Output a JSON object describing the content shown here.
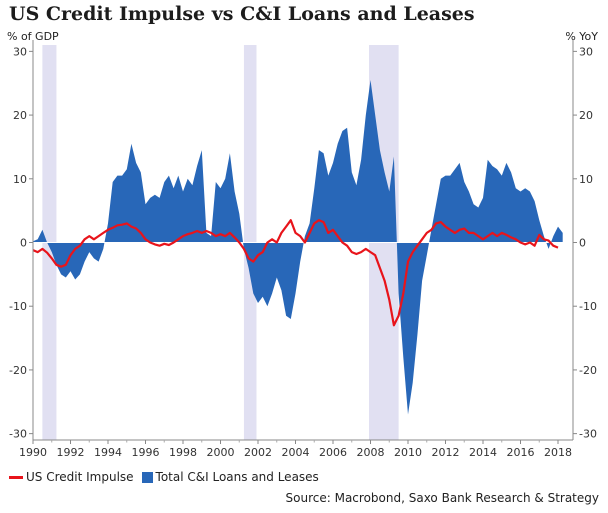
{
  "chart_data": {
    "type": "area",
    "title": "US Credit Impulse vs C&I Loans and Leases",
    "ylabel_left": "% of GDP",
    "ylabel_right": "% YoY",
    "xlim": [
      1990,
      2018.8
    ],
    "ylim": [
      -31,
      31
    ],
    "x_ticks": [
      1990,
      1992,
      1994,
      1996,
      1998,
      2000,
      2002,
      2004,
      2006,
      2008,
      2010,
      2012,
      2014,
      2016,
      2018
    ],
    "y_ticks": [
      -30,
      -20,
      -10,
      0,
      10,
      20,
      30
    ],
    "grid": false,
    "recession_bands": [
      [
        1990.5,
        1991.25
      ],
      [
        2001.25,
        2001.92
      ],
      [
        2007.92,
        2009.5
      ]
    ],
    "legend": {
      "placement": "bottom-left"
    },
    "series": [
      {
        "name": "Total C&I Loans and Leases",
        "style": "area",
        "color": "#2867b8",
        "points": [
          [
            1990.0,
            0.2
          ],
          [
            1990.25,
            0.5
          ],
          [
            1990.5,
            2.0
          ],
          [
            1990.75,
            0.0
          ],
          [
            1991.0,
            -1.5
          ],
          [
            1991.25,
            -3.5
          ],
          [
            1991.5,
            -5.0
          ],
          [
            1991.75,
            -5.5
          ],
          [
            1992.0,
            -4.5
          ],
          [
            1992.25,
            -5.8
          ],
          [
            1992.5,
            -5.0
          ],
          [
            1992.75,
            -3.0
          ],
          [
            1993.0,
            -1.5
          ],
          [
            1993.25,
            -2.5
          ],
          [
            1993.5,
            -3.0
          ],
          [
            1993.75,
            -1.0
          ],
          [
            1994.0,
            3.0
          ],
          [
            1994.25,
            9.5
          ],
          [
            1994.5,
            10.5
          ],
          [
            1994.75,
            10.5
          ],
          [
            1995.0,
            11.5
          ],
          [
            1995.25,
            15.5
          ],
          [
            1995.5,
            12.5
          ],
          [
            1995.75,
            11.0
          ],
          [
            1996.0,
            6.0
          ],
          [
            1996.25,
            7.0
          ],
          [
            1996.5,
            7.5
          ],
          [
            1996.75,
            7.0
          ],
          [
            1997.0,
            9.5
          ],
          [
            1997.25,
            10.5
          ],
          [
            1997.5,
            8.5
          ],
          [
            1997.75,
            10.5
          ],
          [
            1998.0,
            8.0
          ],
          [
            1998.25,
            10.0
          ],
          [
            1998.5,
            9.0
          ],
          [
            1998.75,
            12.0
          ],
          [
            1999.0,
            14.5
          ],
          [
            1999.25,
            1.5
          ],
          [
            1999.5,
            1.0
          ],
          [
            1999.75,
            9.5
          ],
          [
            2000.0,
            8.5
          ],
          [
            2000.25,
            10.0
          ],
          [
            2000.5,
            14.0
          ],
          [
            2000.75,
            8.0
          ],
          [
            2001.0,
            4.5
          ],
          [
            2001.25,
            -1.0
          ],
          [
            2001.5,
            -4.0
          ],
          [
            2001.75,
            -8.0
          ],
          [
            2002.0,
            -9.5
          ],
          [
            2002.25,
            -8.5
          ],
          [
            2002.5,
            -10.0
          ],
          [
            2002.75,
            -8.0
          ],
          [
            2003.0,
            -5.5
          ],
          [
            2003.25,
            -7.5
          ],
          [
            2003.5,
            -11.5
          ],
          [
            2003.75,
            -12.0
          ],
          [
            2004.0,
            -8.0
          ],
          [
            2004.25,
            -3.0
          ],
          [
            2004.5,
            1.0
          ],
          [
            2004.75,
            3.0
          ],
          [
            2005.0,
            8.5
          ],
          [
            2005.25,
            14.5
          ],
          [
            2005.5,
            14.0
          ],
          [
            2005.75,
            10.5
          ],
          [
            2006.0,
            12.5
          ],
          [
            2006.25,
            15.5
          ],
          [
            2006.5,
            17.5
          ],
          [
            2006.75,
            18.0
          ],
          [
            2007.0,
            11.0
          ],
          [
            2007.25,
            9.0
          ],
          [
            2007.5,
            13.0
          ],
          [
            2007.75,
            20.0
          ],
          [
            2008.0,
            25.5
          ],
          [
            2008.25,
            20.0
          ],
          [
            2008.5,
            14.5
          ],
          [
            2008.75,
            11.0
          ],
          [
            2009.0,
            8.0
          ],
          [
            2009.25,
            13.5
          ],
          [
            2009.5,
            -8.0
          ],
          [
            2009.75,
            -18.0
          ],
          [
            2010.0,
            -27.0
          ],
          [
            2010.25,
            -22.0
          ],
          [
            2010.5,
            -14.5
          ],
          [
            2010.75,
            -6.0
          ],
          [
            2011.0,
            -2.0
          ],
          [
            2011.25,
            2.0
          ],
          [
            2011.5,
            6.0
          ],
          [
            2011.75,
            10.0
          ],
          [
            2012.0,
            10.5
          ],
          [
            2012.25,
            10.5
          ],
          [
            2012.5,
            11.5
          ],
          [
            2012.75,
            12.5
          ],
          [
            2013.0,
            9.5
          ],
          [
            2013.25,
            8.0
          ],
          [
            2013.5,
            6.0
          ],
          [
            2013.75,
            5.5
          ],
          [
            2014.0,
            7.0
          ],
          [
            2014.25,
            13.0
          ],
          [
            2014.5,
            12.0
          ],
          [
            2014.75,
            11.5
          ],
          [
            2015.0,
            10.5
          ],
          [
            2015.25,
            12.5
          ],
          [
            2015.5,
            11.0
          ],
          [
            2015.75,
            8.5
          ],
          [
            2016.0,
            8.0
          ],
          [
            2016.25,
            8.5
          ],
          [
            2016.5,
            8.0
          ],
          [
            2016.75,
            6.5
          ],
          [
            2017.0,
            3.5
          ],
          [
            2017.25,
            1.0
          ],
          [
            2017.5,
            -1.0
          ],
          [
            2017.75,
            1.0
          ],
          [
            2018.0,
            2.5
          ],
          [
            2018.25,
            1.5
          ]
        ]
      },
      {
        "name": "US Credit Impulse",
        "style": "line",
        "color": "#e8141b",
        "points": [
          [
            1990.0,
            -1.2
          ],
          [
            1990.25,
            -1.5
          ],
          [
            1990.5,
            -1.0
          ],
          [
            1990.75,
            -1.6
          ],
          [
            1991.0,
            -2.5
          ],
          [
            1991.25,
            -3.5
          ],
          [
            1991.5,
            -3.8
          ],
          [
            1991.75,
            -3.5
          ],
          [
            1992.0,
            -2.0
          ],
          [
            1992.25,
            -1.0
          ],
          [
            1992.5,
            -0.5
          ],
          [
            1992.75,
            0.5
          ],
          [
            1993.0,
            1.0
          ],
          [
            1993.25,
            0.5
          ],
          [
            1993.5,
            1.0
          ],
          [
            1993.75,
            1.5
          ],
          [
            1994.0,
            2.0
          ],
          [
            1994.25,
            2.3
          ],
          [
            1994.5,
            2.7
          ],
          [
            1994.75,
            2.8
          ],
          [
            1995.0,
            3.0
          ],
          [
            1995.25,
            2.5
          ],
          [
            1995.5,
            2.2
          ],
          [
            1995.75,
            1.5
          ],
          [
            1996.0,
            0.5
          ],
          [
            1996.25,
            0.0
          ],
          [
            1996.5,
            -0.3
          ],
          [
            1996.75,
            -0.5
          ],
          [
            1997.0,
            -0.2
          ],
          [
            1997.25,
            -0.4
          ],
          [
            1997.5,
            0.0
          ],
          [
            1997.75,
            0.5
          ],
          [
            1998.0,
            1.0
          ],
          [
            1998.25,
            1.3
          ],
          [
            1998.5,
            1.5
          ],
          [
            1998.75,
            1.8
          ],
          [
            1999.0,
            1.5
          ],
          [
            1999.25,
            1.8
          ],
          [
            1999.5,
            1.5
          ],
          [
            1999.75,
            1.0
          ],
          [
            2000.0,
            1.3
          ],
          [
            2000.25,
            1.0
          ],
          [
            2000.5,
            1.5
          ],
          [
            2000.75,
            0.8
          ],
          [
            2001.0,
            0.0
          ],
          [
            2001.25,
            -1.0
          ],
          [
            2001.5,
            -2.5
          ],
          [
            2001.75,
            -3.0
          ],
          [
            2002.0,
            -2.0
          ],
          [
            2002.25,
            -1.5
          ],
          [
            2002.5,
            0.0
          ],
          [
            2002.75,
            0.5
          ],
          [
            2003.0,
            0.0
          ],
          [
            2003.25,
            1.5
          ],
          [
            2003.5,
            2.5
          ],
          [
            2003.75,
            3.5
          ],
          [
            2004.0,
            1.5
          ],
          [
            2004.25,
            1.0
          ],
          [
            2004.5,
            0.0
          ],
          [
            2004.75,
            1.5
          ],
          [
            2005.0,
            3.0
          ],
          [
            2005.25,
            3.5
          ],
          [
            2005.5,
            3.2
          ],
          [
            2005.75,
            1.5
          ],
          [
            2006.0,
            2.0
          ],
          [
            2006.25,
            1.0
          ],
          [
            2006.5,
            0.0
          ],
          [
            2006.75,
            -0.5
          ],
          [
            2007.0,
            -1.5
          ],
          [
            2007.25,
            -1.8
          ],
          [
            2007.5,
            -1.5
          ],
          [
            2007.75,
            -1.0
          ],
          [
            2008.0,
            -1.5
          ],
          [
            2008.25,
            -2.0
          ],
          [
            2008.5,
            -4.0
          ],
          [
            2008.75,
            -6.0
          ],
          [
            2009.0,
            -9.0
          ],
          [
            2009.25,
            -13.0
          ],
          [
            2009.5,
            -11.5
          ],
          [
            2009.75,
            -8.0
          ],
          [
            2010.0,
            -3.0
          ],
          [
            2010.25,
            -1.5
          ],
          [
            2010.5,
            -0.5
          ],
          [
            2010.75,
            0.5
          ],
          [
            2011.0,
            1.5
          ],
          [
            2011.25,
            2.0
          ],
          [
            2011.5,
            3.0
          ],
          [
            2011.75,
            3.2
          ],
          [
            2012.0,
            2.5
          ],
          [
            2012.25,
            2.0
          ],
          [
            2012.5,
            1.5
          ],
          [
            2012.75,
            2.0
          ],
          [
            2013.0,
            2.2
          ],
          [
            2013.25,
            1.5
          ],
          [
            2013.5,
            1.5
          ],
          [
            2013.75,
            1.0
          ],
          [
            2014.0,
            0.5
          ],
          [
            2014.25,
            1.0
          ],
          [
            2014.5,
            1.5
          ],
          [
            2014.75,
            1.0
          ],
          [
            2015.0,
            1.5
          ],
          [
            2015.25,
            1.2
          ],
          [
            2015.5,
            0.8
          ],
          [
            2015.75,
            0.5
          ],
          [
            2016.0,
            0.0
          ],
          [
            2016.25,
            -0.3
          ],
          [
            2016.5,
            0.0
          ],
          [
            2016.75,
            -0.5
          ],
          [
            2017.0,
            1.2
          ],
          [
            2017.25,
            0.5
          ],
          [
            2017.5,
            0.3
          ],
          [
            2017.75,
            -0.5
          ],
          [
            2018.0,
            -0.8
          ]
        ]
      }
    ]
  },
  "legend": {
    "items": [
      {
        "label": "US Credit Impulse"
      },
      {
        "label": "Total C&I Loans and Leases"
      }
    ]
  },
  "source": "Source: Macrobond, Saxo Bank Research & Strategy",
  "colors": {
    "impulse": "#e8141b",
    "loans": "#2867b8",
    "recession": "#e1e0f2"
  }
}
